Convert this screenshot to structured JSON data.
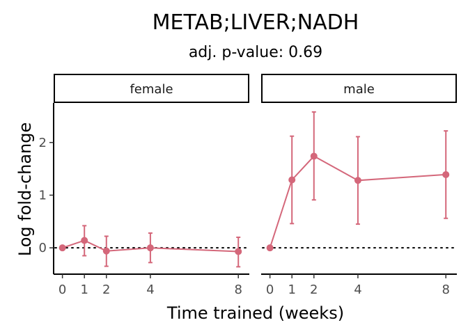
{
  "chart_data": {
    "type": "line",
    "title": "METAB;LIVER;NADH",
    "subtitle": "adj. p-value: 0.69",
    "xlabel": "Time trained (weeks)",
    "ylabel": "Log fold-change",
    "x_ticks": [
      0,
      1,
      2,
      4,
      8
    ],
    "y_ticks": [
      0,
      1,
      2
    ],
    "xlim": [
      -0.4,
      8.5
    ],
    "ylim": [
      -0.5,
      2.75
    ],
    "reference_line": 0,
    "series_color": "#d4677a",
    "panels": [
      {
        "label": "female",
        "points": [
          {
            "x": 0,
            "y": 0.0,
            "lower": null,
            "upper": null
          },
          {
            "x": 1,
            "y": 0.14,
            "lower": -0.15,
            "upper": 0.42
          },
          {
            "x": 2,
            "y": -0.06,
            "lower": -0.35,
            "upper": 0.22
          },
          {
            "x": 4,
            "y": 0.0,
            "lower": -0.28,
            "upper": 0.28
          },
          {
            "x": 8,
            "y": -0.07,
            "lower": -0.36,
            "upper": 0.2
          }
        ]
      },
      {
        "label": "male",
        "points": [
          {
            "x": 0,
            "y": 0.0,
            "lower": null,
            "upper": null
          },
          {
            "x": 1,
            "y": 1.29,
            "lower": 0.46,
            "upper": 2.12
          },
          {
            "x": 2,
            "y": 1.74,
            "lower": 0.91,
            "upper": 2.58
          },
          {
            "x": 4,
            "y": 1.28,
            "lower": 0.45,
            "upper": 2.11
          },
          {
            "x": 8,
            "y": 1.39,
            "lower": 0.56,
            "upper": 2.22
          }
        ]
      }
    ]
  }
}
